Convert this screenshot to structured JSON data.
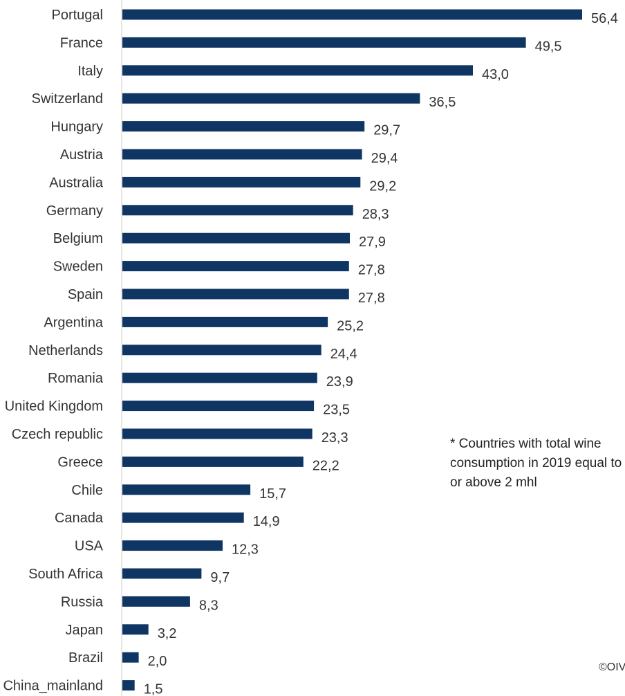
{
  "chart_data": {
    "type": "bar",
    "orientation": "horizontal",
    "categories": [
      "Portugal",
      "France",
      "Italy",
      "Switzerland",
      "Hungary",
      "Austria",
      "Australia",
      "Germany",
      "Belgium",
      "Sweden",
      "Spain",
      "Argentina",
      "Netherlands",
      "Romania",
      "United Kingdom",
      "Czech republic",
      "Greece",
      "Chile",
      "Canada",
      "USA",
      "South Africa",
      "Russia",
      "Japan",
      "Brazil",
      "China_mainland"
    ],
    "values": [
      56.4,
      49.5,
      43.0,
      36.5,
      29.7,
      29.4,
      29.2,
      28.3,
      27.9,
      27.8,
      27.8,
      25.2,
      24.4,
      23.9,
      23.5,
      23.3,
      22.2,
      15.7,
      14.9,
      12.3,
      9.7,
      8.3,
      3.2,
      2.0,
      1.5
    ],
    "value_labels": [
      "56,4",
      "49,5",
      "43,0",
      "36,5",
      "29,7",
      "29,4",
      "29,2",
      "28,3",
      "27,9",
      "27,8",
      "27,8",
      "25,2",
      "24,4",
      "23,9",
      "23,5",
      "23,3",
      "22,2",
      "15,7",
      "14,9",
      "12,3",
      "9,7",
      "8,3",
      "3,2",
      "2,0",
      "1,5"
    ],
    "title": "",
    "xlabel": "",
    "ylabel": "",
    "xlim": [
      0,
      56.4
    ],
    "grid": false,
    "bar_color": "#0f3563"
  },
  "note": {
    "lines": [
      "* Countries with total wine",
      "consumption in 2019 equal to",
      "or above 2 mhl"
    ]
  },
  "credit": "©OIV"
}
